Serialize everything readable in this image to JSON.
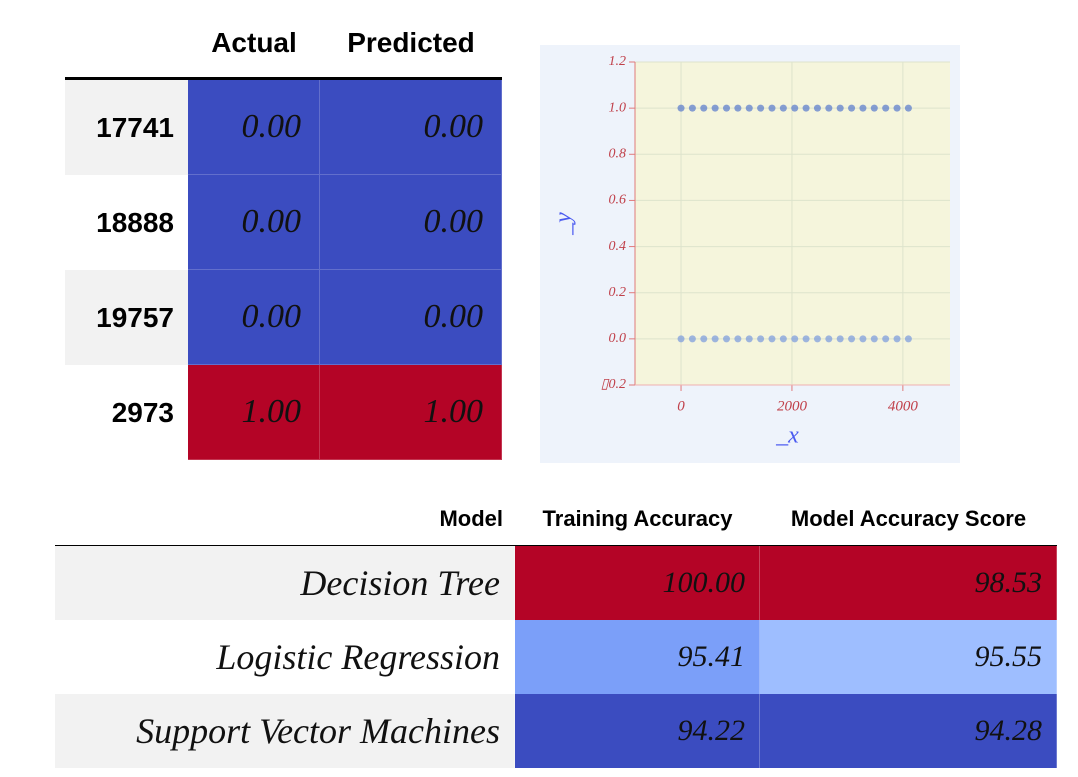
{
  "table1": {
    "columns": [
      "Actual",
      "Predicted"
    ],
    "rows": [
      {
        "index": "17741",
        "cells": [
          "0.00",
          "0.00"
        ],
        "colors": [
          "#3b4cc0",
          "#3b4cc0"
        ]
      },
      {
        "index": "18888",
        "cells": [
          "0.00",
          "0.00"
        ],
        "colors": [
          "#3b4cc0",
          "#3b4cc0"
        ]
      },
      {
        "index": "19757",
        "cells": [
          "0.00",
          "0.00"
        ],
        "colors": [
          "#3b4cc0",
          "#3b4cc0"
        ]
      },
      {
        "index": "2973",
        "cells": [
          "1.00",
          "1.00"
        ],
        "colors": [
          "#b40426",
          "#b40426"
        ]
      }
    ]
  },
  "chart_data": {
    "type": "scatter",
    "x_label": "_x",
    "y_label": "_y",
    "x": [
      0,
      205,
      410,
      615,
      820,
      1025,
      1230,
      1435,
      1640,
      1845,
      2050,
      2255,
      2460,
      2665,
      2870,
      3075,
      3280,
      3485,
      3690,
      3895,
      4100
    ],
    "series": [
      {
        "color": "#5577cc",
        "values": [
          1,
          1,
          1,
          1,
          1,
          1,
          1,
          1,
          1,
          1,
          1,
          1,
          1,
          1,
          1,
          1,
          1,
          1,
          1,
          1,
          1
        ]
      },
      {
        "color": "#7799dd",
        "values": [
          0,
          0,
          0,
          0,
          0,
          0,
          0,
          0,
          0,
          0,
          0,
          0,
          0,
          0,
          0,
          0,
          0,
          0,
          0,
          0,
          0
        ]
      }
    ],
    "xlim": [
      -830,
      4850
    ],
    "xticks": [
      0,
      2000,
      4000
    ],
    "ylim": [
      -0.2,
      1.2
    ],
    "yticks": [
      {
        "value": -0.2,
        "label": "▯0.2"
      },
      {
        "value": 0,
        "label": "0.0"
      },
      {
        "value": 0.2,
        "label": "0.2"
      },
      {
        "value": 0.4,
        "label": "0.4"
      },
      {
        "value": 0.6,
        "label": "0.6"
      },
      {
        "value": 0.8,
        "label": "0.8"
      },
      {
        "value": 1,
        "label": "1.0"
      },
      {
        "value": 1.2,
        "label": "1.2"
      }
    ],
    "grid": true
  },
  "table2": {
    "columns": [
      "Model",
      "Training Accuracy",
      "Model Accuracy Score"
    ],
    "rows": [
      {
        "cells": [
          "Decision Tree",
          "100.00",
          "98.53"
        ],
        "colors": [
          "#f2f2f2",
          "#b40426",
          "#b40426"
        ]
      },
      {
        "cells": [
          "Logistic Regression",
          "95.41",
          "95.55"
        ],
        "colors": [
          "#ffffff",
          "#7b9ff9",
          "#9ebeff"
        ]
      },
      {
        "cells": [
          "Support Vector Machines",
          "94.22",
          "94.28"
        ],
        "colors": [
          "#f2f2f2",
          "#3b4cc0",
          "#3b4cc0"
        ]
      }
    ]
  }
}
